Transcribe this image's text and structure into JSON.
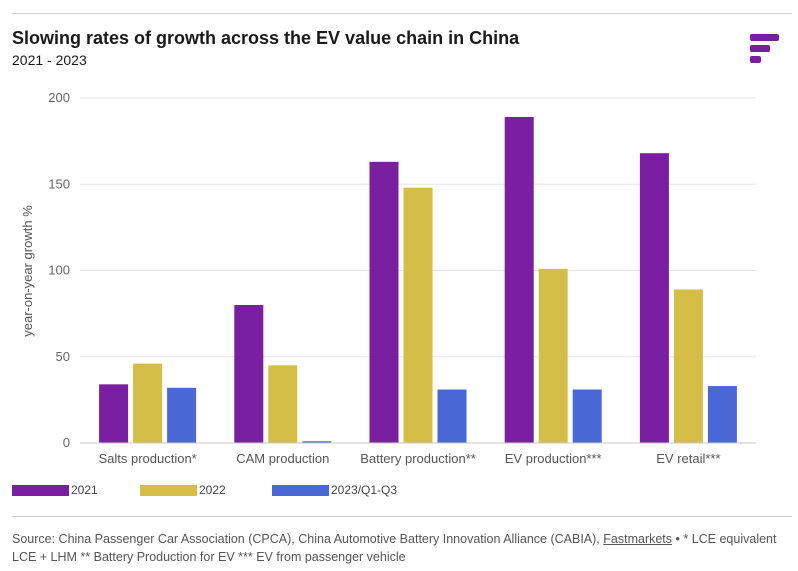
{
  "header": {
    "title": "Slowing rates of growth across the EV value chain in China",
    "subtitle": "2021 - 2023"
  },
  "brand": {
    "logo_icon": "fastmarkets-logo-icon",
    "color": "#7b1fa2"
  },
  "chart_data": {
    "type": "bar",
    "title": "Slowing rates of growth across the EV value chain in China",
    "subtitle": "2021 - 2023",
    "xlabel": "",
    "ylabel": "year-on-year growth %",
    "ylim": [
      0,
      200
    ],
    "yticks": [
      0,
      50,
      100,
      150,
      200
    ],
    "grid": true,
    "legend_position": "bottom-left",
    "categories": [
      "Salts production*",
      "CAM production",
      "Battery production**",
      "EV production***",
      "EV retail***"
    ],
    "series": [
      {
        "name": "2021",
        "color": "#7b1fa2",
        "values": [
          34,
          80,
          163,
          189,
          168
        ]
      },
      {
        "name": "2022",
        "color": "#d4be48",
        "values": [
          46,
          45,
          148,
          101,
          89
        ]
      },
      {
        "name": "2023/Q1-Q3",
        "color": "#4a67d6",
        "values": [
          32,
          1,
          31,
          31,
          33
        ]
      }
    ]
  },
  "footer": {
    "source_prefix": "Source: China Passenger Car Association (CPCA),  China Automotive Battery Innovation Alliance (CABIA), ",
    "source_link": "Fastmarkets",
    "source_suffix": " • * LCE equivalent LCE + LHM ** Battery Production for EV *** EV from passenger vehicle"
  }
}
